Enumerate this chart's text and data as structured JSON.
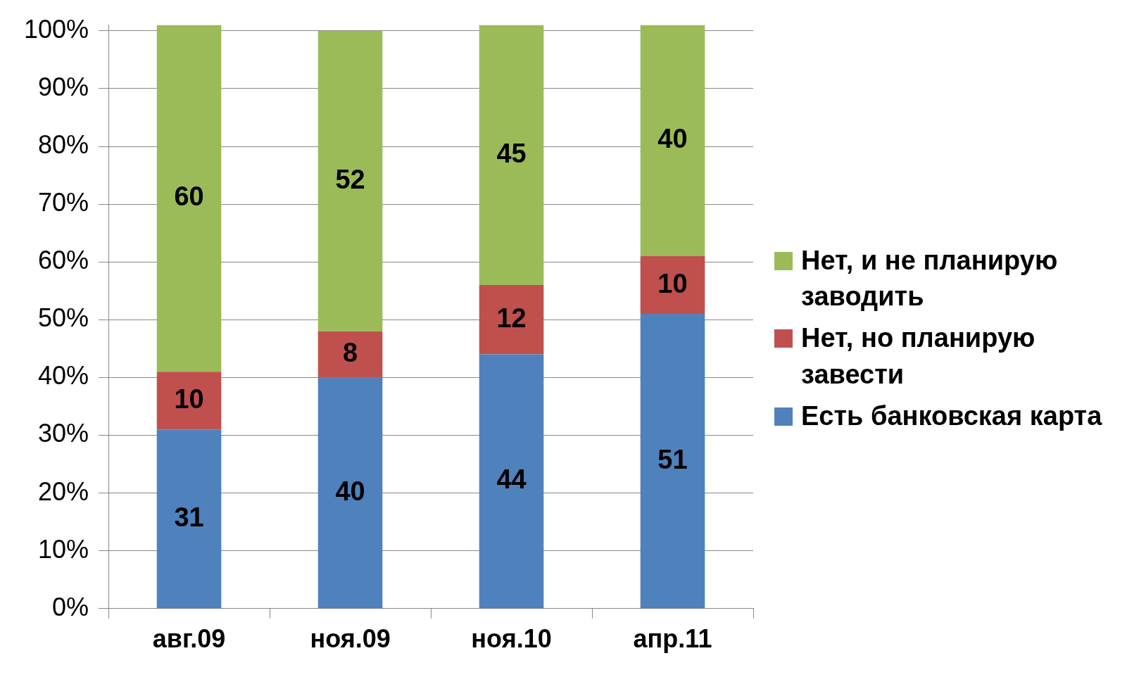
{
  "chart_data": {
    "type": "bar",
    "stacked": true,
    "categories": [
      "авг.09",
      "ноя.09",
      "ноя.10",
      "апр.11"
    ],
    "series": [
      {
        "name": "Есть банковская карта",
        "color": "#4f81bd",
        "values": [
          31,
          40,
          44,
          51
        ],
        "value_labels": [
          "31",
          "40",
          "44",
          "51"
        ]
      },
      {
        "name": "Нет, но планирую завести",
        "color": "#c0504d",
        "values": [
          10,
          8,
          12,
          10
        ],
        "value_labels": [
          "10",
          "8",
          "12",
          "10"
        ]
      },
      {
        "name": "Нет, и не планирую заводить",
        "color": "#9bbb59",
        "values": [
          60,
          52,
          45,
          40
        ],
        "value_labels": [
          "60",
          "52",
          "45",
          "40"
        ]
      }
    ],
    "ylim": [
      0,
      101
    ],
    "yticks": [
      {
        "value": 0,
        "label": "0%"
      },
      {
        "value": 10,
        "label": "10%"
      },
      {
        "value": 20,
        "label": "20%"
      },
      {
        "value": 30,
        "label": "30%"
      },
      {
        "value": 40,
        "label": "40%"
      },
      {
        "value": 50,
        "label": "50%"
      },
      {
        "value": 60,
        "label": "60%"
      },
      {
        "value": 70,
        "label": "70%"
      },
      {
        "value": 80,
        "label": "80%"
      },
      {
        "value": 90,
        "label": "90%"
      },
      {
        "value": 100,
        "label": "100%"
      }
    ],
    "grid": "y",
    "legend": "right"
  }
}
